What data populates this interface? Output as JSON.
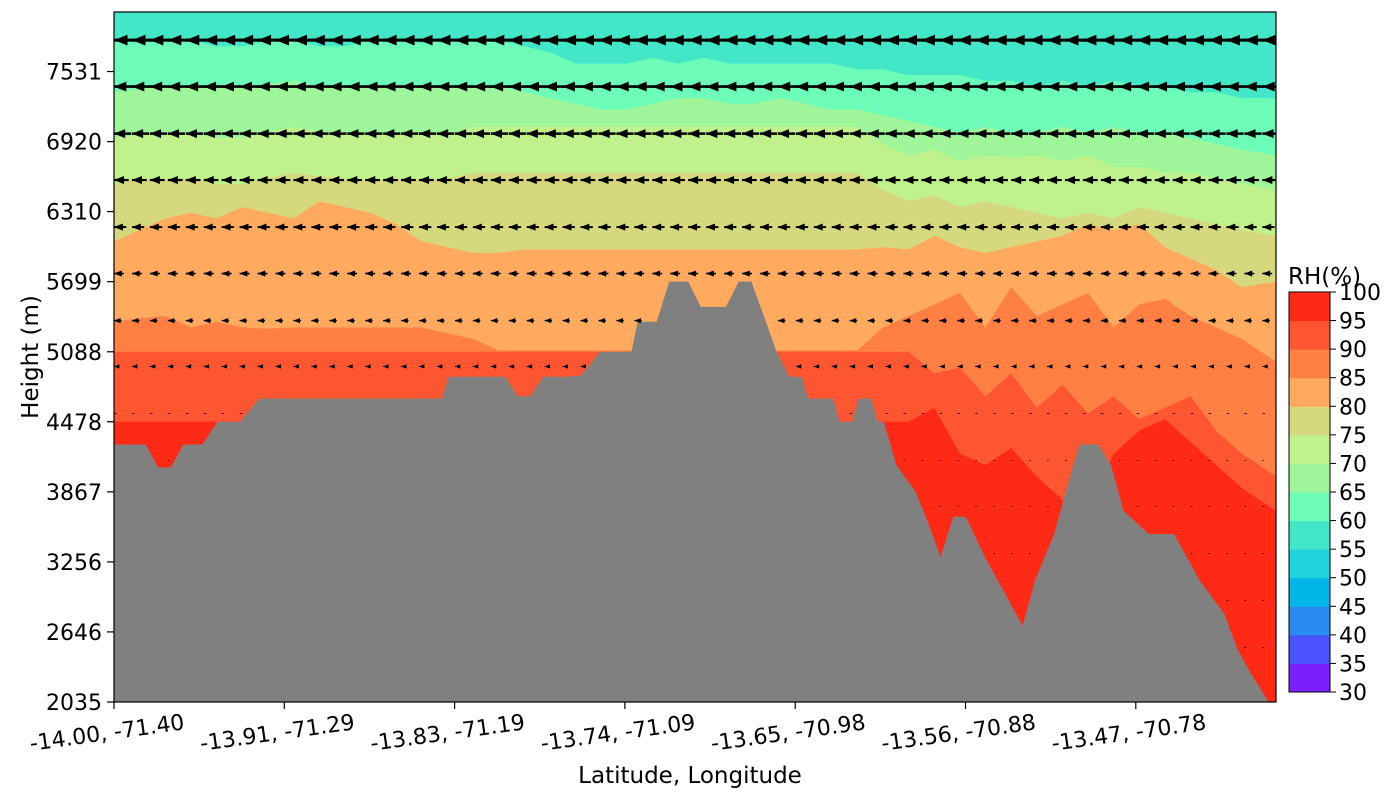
{
  "chart_data": {
    "type": "heatmap",
    "title": "",
    "xlabel": "Latitude, Longitude",
    "ylabel": "Height (m)",
    "x_ticks": [
      "-14.00, -71.40",
      "-13.91, -71.29",
      "-13.83, -71.19",
      "-13.74, -71.09",
      "-13.65, -70.98",
      "-13.56, -70.88",
      "-13.47, -70.78"
    ],
    "y_ticks": [
      2035,
      2646,
      3256,
      3867,
      4478,
      5088,
      5699,
      6310,
      6920,
      7531
    ],
    "ylim": [
      2035,
      8050
    ],
    "colorbar": {
      "label": "RH(%)",
      "levels": [
        30,
        35,
        40,
        45,
        50,
        55,
        60,
        65,
        70,
        75,
        80,
        85,
        90,
        95,
        100
      ],
      "colors": [
        "#7b1fff",
        "#4a53ff",
        "#2a8cf0",
        "#00b5e8",
        "#1fd4dc",
        "#44e6c8",
        "#6dfcb8",
        "#9ff59a",
        "#bff28c",
        "#d6d87e",
        "#ffaa5e",
        "#ff8042",
        "#ff5632",
        "#ff2a15"
      ]
    },
    "profile_x": [
      0,
      0.15,
      0.3,
      0.45,
      0.6,
      0.75,
      0.9,
      1.05,
      1.2,
      1.35,
      1.5,
      1.65,
      1.8,
      1.95,
      2.1,
      2.25,
      2.4,
      2.55,
      2.7,
      2.85,
      3.0,
      3.15,
      3.3,
      3.45,
      3.6,
      3.75,
      3.9,
      4.05,
      4.2,
      4.35,
      4.5,
      4.65,
      4.8,
      4.95,
      5.1,
      5.25,
      5.4,
      5.55,
      5.7,
      5.85,
      6.0,
      6.15,
      6.3,
      6.45,
      6.6,
      6.8
    ],
    "layers": [
      {
        "level": 100,
        "bounds": [
          4478,
          4478,
          4478,
          4478,
          4478,
          4478,
          4478,
          4478,
          4478,
          4478,
          4478,
          4478,
          4478,
          4478,
          4478,
          4478,
          4478,
          4478,
          4478,
          4478,
          4478,
          4478,
          4478,
          4478,
          4478,
          4478,
          4478,
          4478,
          4478,
          4478,
          4478,
          4478,
          4478,
          4478,
          4478,
          4478,
          4478,
          4478,
          4478,
          4478,
          4478,
          4478,
          4478,
          4478,
          4478,
          4478
        ]
      },
      {
        "level": 95,
        "bounds": [
          4478,
          4478,
          4478,
          4478,
          4478,
          4478,
          4478,
          4478,
          4478,
          4478,
          4478,
          4478,
          4478,
          4478,
          4478,
          4478,
          4478,
          4478,
          4478,
          4478,
          4478,
          4478,
          4478,
          4478,
          4478,
          4478,
          4478,
          4478,
          4478,
          4478,
          4478,
          4478,
          4600,
          4200,
          4100,
          4250,
          4000,
          3800,
          3700,
          4200,
          4400,
          4500,
          4300,
          4100,
          3900,
          3700
        ]
      },
      {
        "level": 90,
        "bounds": [
          5088,
          5088,
          5088,
          5088,
          5088,
          5088,
          5088,
          5088,
          5088,
          5088,
          5088,
          5088,
          5088,
          5088,
          5088,
          5088,
          5088,
          5088,
          5088,
          5088,
          5088,
          5088,
          5088,
          5088,
          5088,
          5088,
          5088,
          5088,
          5088,
          5088,
          5088,
          5088,
          4900,
          4950,
          4700,
          4900,
          4600,
          4800,
          4550,
          4700,
          4500,
          4600,
          4700,
          4400,
          4200,
          4000
        ]
      },
      {
        "level": 85,
        "bounds": [
          5350,
          5380,
          5400,
          5300,
          5350,
          5300,
          5290,
          5300,
          5300,
          5300,
          5300,
          5300,
          5300,
          5250,
          5200,
          5100,
          5100,
          5100,
          5100,
          5100,
          5100,
          5100,
          5100,
          5100,
          5100,
          5100,
          5100,
          5100,
          5100,
          5100,
          5300,
          5400,
          5500,
          5600,
          5300,
          5650,
          5400,
          5500,
          5600,
          5300,
          5500,
          5550,
          5400,
          5300,
          5200,
          5000
        ]
      },
      {
        "level": 80,
        "bounds": [
          6050,
          6150,
          6250,
          6300,
          6250,
          6350,
          6300,
          6250,
          6400,
          6350,
          6300,
          6200,
          6050,
          6000,
          5950,
          5950,
          5980,
          5980,
          5980,
          5980,
          5980,
          5980,
          5980,
          5980,
          5980,
          5980,
          5980,
          5980,
          5980,
          5980,
          6000,
          5980,
          6100,
          6000,
          5950,
          6000,
          6050,
          6100,
          6200,
          6150,
          6200,
          6000,
          5900,
          5800,
          5650,
          5700
        ]
      },
      {
        "level": 75,
        "bounds": [
          6550,
          6600,
          6600,
          6600,
          6550,
          6550,
          6600,
          6650,
          6620,
          6600,
          6580,
          6600,
          6600,
          6600,
          6650,
          6650,
          6650,
          6650,
          6650,
          6650,
          6650,
          6650,
          6650,
          6650,
          6650,
          6650,
          6650,
          6650,
          6650,
          6650,
          6500,
          6400,
          6450,
          6350,
          6400,
          6350,
          6300,
          6250,
          6300,
          6250,
          6350,
          6300,
          6250,
          6200,
          6150,
          6100
        ]
      },
      {
        "level": 70,
        "bounds": [
          6950,
          6980,
          7000,
          7000,
          6950,
          6950,
          7000,
          7050,
          7000,
          7000,
          7000,
          7000,
          7000,
          6980,
          7050,
          7050,
          7050,
          7050,
          7050,
          7050,
          7050,
          7050,
          7050,
          7050,
          7050,
          7050,
          7050,
          7050,
          7050,
          7050,
          6900,
          6800,
          6850,
          6750,
          6800,
          6780,
          6800,
          6750,
          6800,
          6700,
          6700,
          6650,
          6650,
          6600,
          6550,
          6500
        ]
      },
      {
        "level": 65,
        "bounds": [
          7350,
          7380,
          7400,
          7400,
          7400,
          7400,
          7420,
          7450,
          7400,
          7400,
          7400,
          7400,
          7400,
          7400,
          7400,
          7400,
          7350,
          7300,
          7250,
          7200,
          7200,
          7250,
          7300,
          7300,
          7250,
          7250,
          7300,
          7250,
          7200,
          7200,
          7150,
          7100,
          7050,
          7000,
          7050,
          7000,
          7000,
          7050,
          7000,
          7050,
          7000,
          7000,
          6950,
          6900,
          6850,
          6800
        ]
      },
      {
        "level": 60,
        "bounds": [
          7800,
          7780,
          7800,
          7800,
          7750,
          7750,
          7800,
          7800,
          7750,
          7750,
          7800,
          7800,
          7780,
          7800,
          7800,
          7800,
          7750,
          7700,
          7600,
          7600,
          7600,
          7650,
          7600,
          7650,
          7600,
          7600,
          7600,
          7600,
          7600,
          7550,
          7550,
          7500,
          7500,
          7500,
          7450,
          7450,
          7400,
          7450,
          7400,
          7450,
          7400,
          7400,
          7350,
          7350,
          7300,
          7300
        ]
      },
      {
        "level": 55,
        "bounds": [
          8050,
          8050,
          8050,
          8050,
          8050,
          8050,
          8050,
          8050,
          8050,
          8050,
          8050,
          8050,
          8050,
          8050,
          8050,
          8050,
          8050,
          8050,
          8050,
          8050,
          8050,
          8050,
          8050,
          8050,
          8050,
          8050,
          8050,
          8050,
          8050,
          8050,
          8050,
          8050,
          8050,
          8050,
          8050,
          8050,
          8050,
          8050,
          8050,
          8050,
          8050,
          8050,
          8050,
          8050,
          8050,
          8050
        ]
      }
    ],
    "terrain": [
      [
        0,
        4280
      ],
      [
        0.25,
        4280
      ],
      [
        0.35,
        4080
      ],
      [
        0.45,
        4080
      ],
      [
        0.55,
        4280
      ],
      [
        0.7,
        4280
      ],
      [
        0.82,
        4478
      ],
      [
        1.0,
        4478
      ],
      [
        1.15,
        4680
      ],
      [
        1.4,
        4680
      ],
      [
        1.6,
        4680
      ],
      [
        1.8,
        4680
      ],
      [
        2.0,
        4680
      ],
      [
        2.2,
        4680
      ],
      [
        2.4,
        4680
      ],
      [
        2.5,
        4680
      ],
      [
        2.6,
        4680
      ],
      [
        2.65,
        4870
      ],
      [
        2.75,
        4870
      ],
      [
        2.9,
        4870
      ],
      [
        3.0,
        4870
      ],
      [
        3.1,
        4870
      ],
      [
        3.2,
        4700
      ],
      [
        3.3,
        4700
      ],
      [
        3.4,
        4870
      ],
      [
        3.5,
        4870
      ],
      [
        3.6,
        4870
      ],
      [
        3.7,
        4880
      ],
      [
        3.85,
        5088
      ],
      [
        4.0,
        5088
      ],
      [
        4.1,
        5088
      ],
      [
        4.15,
        5350
      ],
      [
        4.3,
        5350
      ],
      [
        4.4,
        5700
      ],
      [
        4.55,
        5700
      ],
      [
        4.65,
        5480
      ],
      [
        4.85,
        5480
      ],
      [
        4.95,
        5700
      ],
      [
        5.05,
        5700
      ],
      [
        5.15,
        5400
      ],
      [
        5.25,
        5088
      ],
      [
        5.35,
        4870
      ],
      [
        5.45,
        4870
      ],
      [
        5.5,
        4680
      ],
      [
        5.6,
        4680
      ],
      [
        5.7,
        4680
      ],
      [
        5.75,
        4478
      ],
      [
        5.85,
        4478
      ],
      [
        5.9,
        4680
      ],
      [
        6.0,
        4680
      ],
      [
        6.05,
        4478
      ],
      [
        6.1,
        4478
      ],
      [
        6.2,
        4100
      ],
      [
        6.35,
        3870
      ],
      [
        6.45,
        3600
      ],
      [
        6.55,
        3300
      ],
      [
        6.65,
        3650
      ],
      [
        6.75,
        3650
      ],
      [
        6.9,
        3300
      ],
      [
        7.1,
        2900
      ],
      [
        7.2,
        2700
      ],
      [
        7.3,
        3100
      ],
      [
        7.45,
        3500
      ],
      [
        7.55,
        3900
      ],
      [
        7.65,
        4280
      ],
      [
        7.8,
        4280
      ],
      [
        7.9,
        4100
      ],
      [
        8.0,
        3700
      ],
      [
        8.2,
        3500
      ],
      [
        8.4,
        3500
      ],
      [
        8.6,
        3100
      ],
      [
        8.8,
        2800
      ],
      [
        8.9,
        2500
      ],
      [
        9.0,
        2300
      ],
      [
        9.15,
        2035
      ],
      [
        0,
        2035
      ]
    ],
    "wind_levels": [
      7805,
      7400,
      6990,
      6585,
      6175,
      5770,
      5360,
      4960,
      4550,
      4140,
      3740,
      3330,
      2920,
      2510
    ]
  }
}
